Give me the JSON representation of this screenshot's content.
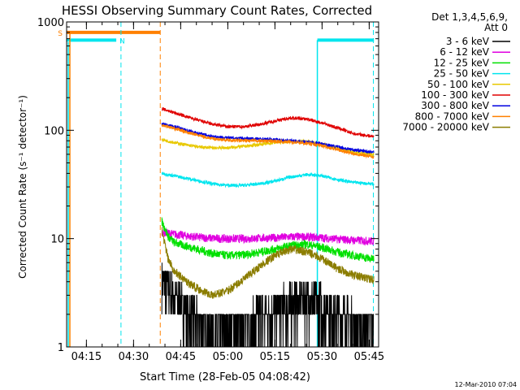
{
  "chart_data": {
    "type": "line",
    "title": "HESSI Observing Summary Count Rates, Corrected",
    "xlabel": "Start Time (28-Feb-05 04:08:42)",
    "ylabel": "Corrected Count Rate (s⁻¹ detector⁻¹)",
    "yscale": "log",
    "ylim": [
      1,
      1000
    ],
    "xlim": [
      "04:08:42",
      "05:48:00"
    ],
    "x_ticks": [
      "04:15",
      "04:30",
      "04:45",
      "05:00",
      "05:15",
      "05:30",
      "05:45"
    ],
    "y_ticks": [
      "1",
      "10",
      "100",
      "1000"
    ],
    "grid": false,
    "legend_title": [
      "Det 1,3,4,5,6,9,",
      "Att 0"
    ],
    "legend_position": "right",
    "timestamp": "12-Mar-2010 07:04",
    "markers": [
      {
        "label": "S",
        "color": "#ff8000",
        "bar": [
          "04:08:42",
          "04:38:30"
        ],
        "level": 800,
        "dashed_at": "04:38:30"
      },
      {
        "label": "N",
        "color": "#00e5ee",
        "bar": [
          "04:08:42",
          "04:24:30"
        ],
        "level": 680,
        "dashed_at": "04:26:00"
      },
      {
        "label": "",
        "color": "#00e5ee",
        "bar": [
          "05:28:30",
          "05:46:30"
        ],
        "level": 680,
        "dashed_at": "05:46:20",
        "solid_at": "05:28:30"
      }
    ],
    "data_start": "04:39:00",
    "data_end": "05:46:30",
    "series": [
      {
        "name": "3 - 6 keV",
        "color": "#000000",
        "x": [
          "04:39",
          "04:43",
          "04:47",
          "04:51",
          "04:55",
          "05:00",
          "05:05",
          "05:10",
          "05:15",
          "05:20",
          "05:25",
          "05:30",
          "05:35",
          "05:40",
          "05:46"
        ],
        "values": [
          4.2,
          3.0,
          2.2,
          1.6,
          1.4,
          1.4,
          1.6,
          1.9,
          2.2,
          2.6,
          2.8,
          2.5,
          2.0,
          1.7,
          1.6
        ]
      },
      {
        "name": "6 - 12 keV",
        "color": "#e000e0",
        "x": [
          "04:39",
          "04:43",
          "04:47",
          "04:51",
          "04:55",
          "05:00",
          "05:05",
          "05:10",
          "05:15",
          "05:20",
          "05:25",
          "05:30",
          "05:35",
          "05:40",
          "05:46"
        ],
        "values": [
          11.5,
          11.0,
          10.6,
          10.3,
          10.1,
          10.0,
          10.0,
          10.1,
          10.2,
          10.4,
          10.4,
          10.2,
          9.9,
          9.7,
          9.5
        ]
      },
      {
        "name": "12 - 25 keV",
        "color": "#00e000",
        "x": [
          "04:39",
          "04:41",
          "04:43",
          "04:47",
          "04:51",
          "04:55",
          "05:00",
          "05:05",
          "05:10",
          "05:15",
          "05:20",
          "05:25",
          "05:30",
          "05:35",
          "05:40",
          "05:46"
        ],
        "values": [
          14.5,
          10.5,
          9.2,
          8.5,
          7.9,
          7.3,
          7.0,
          7.1,
          7.5,
          8.0,
          8.6,
          8.9,
          8.3,
          7.5,
          7.0,
          6.5
        ]
      },
      {
        "name": "25 - 50 keV",
        "color": "#00e5ee",
        "x": [
          "04:39",
          "04:43",
          "04:47",
          "04:51",
          "04:55",
          "05:00",
          "05:05",
          "05:10",
          "05:15",
          "05:20",
          "05:25",
          "05:30",
          "05:35",
          "05:40",
          "05:46"
        ],
        "values": [
          40,
          38,
          36,
          34,
          32,
          31,
          31,
          32,
          34,
          37,
          39,
          38,
          35,
          33,
          32
        ]
      },
      {
        "name": "50 - 100 keV",
        "color": "#e8c800",
        "x": [
          "04:39",
          "04:43",
          "04:47",
          "04:51",
          "04:55",
          "05:00",
          "05:05",
          "05:10",
          "05:15",
          "05:20",
          "05:25",
          "05:30",
          "05:35",
          "05:40",
          "05:46"
        ],
        "values": [
          82,
          77,
          73,
          70,
          69,
          69,
          71,
          74,
          77,
          79,
          79,
          75,
          68,
          63,
          60
        ]
      },
      {
        "name": "100 - 300 keV",
        "color": "#e00000",
        "x": [
          "04:39",
          "04:43",
          "04:47",
          "04:51",
          "04:55",
          "05:00",
          "05:05",
          "05:10",
          "05:15",
          "05:20",
          "05:25",
          "05:30",
          "05:35",
          "05:40",
          "05:46"
        ],
        "values": [
          158,
          145,
          133,
          123,
          114,
          108,
          108,
          113,
          122,
          130,
          127,
          117,
          105,
          93,
          88
        ]
      },
      {
        "name": "300 - 800 keV",
        "color": "#0000e0",
        "x": [
          "04:39",
          "04:43",
          "04:47",
          "04:51",
          "04:55",
          "05:00",
          "05:05",
          "05:10",
          "05:15",
          "05:20",
          "05:25",
          "05:30",
          "05:35",
          "05:40",
          "05:46"
        ],
        "values": [
          115,
          108,
          100,
          93,
          88,
          85,
          84,
          83,
          82,
          80,
          78,
          75,
          70,
          66,
          63
        ]
      },
      {
        "name": "800 - 7000 keV",
        "color": "#ff8000",
        "x": [
          "04:39",
          "04:43",
          "04:47",
          "04:51",
          "04:55",
          "05:00",
          "05:05",
          "05:10",
          "05:15",
          "05:20",
          "05:25",
          "05:30",
          "05:35",
          "05:40",
          "05:46"
        ],
        "values": [
          112,
          104,
          96,
          89,
          84,
          81,
          80,
          80,
          79,
          78,
          76,
          72,
          66,
          61,
          57
        ]
      },
      {
        "name": "7000 - 20000 keV",
        "color": "#8b7d00",
        "x": [
          "04:39",
          "04:41",
          "04:43",
          "04:47",
          "04:51",
          "04:55",
          "05:00",
          "05:05",
          "05:10",
          "05:15",
          "05:20",
          "05:25",
          "05:30",
          "05:35",
          "05:40",
          "05:46"
        ],
        "values": [
          12,
          6.5,
          5.0,
          4.0,
          3.4,
          3.0,
          3.3,
          4.2,
          5.5,
          7.0,
          8.0,
          7.6,
          6.5,
          5.3,
          4.6,
          4.2
        ]
      }
    ]
  }
}
